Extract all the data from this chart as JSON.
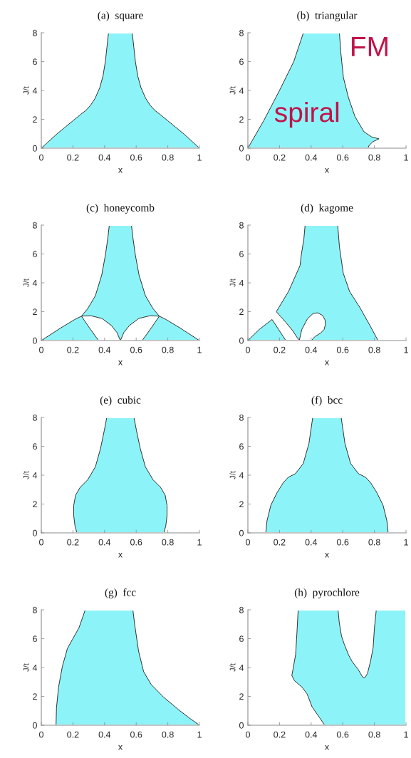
{
  "chart_data": [
    {
      "type": "area",
      "title": "(a)  square",
      "xlabel": "x",
      "ylabel": "J/t",
      "xlim": [
        0,
        1
      ],
      "ylim": [
        0,
        8
      ],
      "xticks": [
        0,
        0.2,
        0.4,
        0.6,
        0.8,
        1
      ],
      "yticks": [
        0,
        2,
        4,
        6,
        8
      ],
      "series": [
        {
          "color": "#8cf4f8",
          "x": [
            0,
            0.05,
            0.1,
            0.15,
            0.2,
            0.25,
            0.28,
            0.31,
            0.34,
            0.37,
            0.39,
            0.405,
            0.415,
            0.425,
            0.575,
            0.585,
            0.595,
            0.61,
            0.63,
            0.66,
            0.69,
            0.72,
            0.75,
            0.8,
            0.85,
            0.9,
            0.95,
            1
          ],
          "values": [
            0,
            0.5,
            1.0,
            1.45,
            1.9,
            2.35,
            2.6,
            2.95,
            3.45,
            4.2,
            5.0,
            6.0,
            7.0,
            8,
            8,
            7.0,
            6.0,
            5.0,
            4.2,
            3.45,
            2.95,
            2.6,
            2.35,
            1.9,
            1.45,
            1.0,
            0.5,
            0
          ]
        }
      ]
    },
    {
      "type": "area",
      "title": "(b)  triangular",
      "xlabel": "x",
      "ylabel": "J/t",
      "xlim": [
        0,
        1
      ],
      "ylim": [
        0,
        8
      ],
      "xticks": [
        0,
        0.2,
        0.4,
        0.6,
        0.8,
        1
      ],
      "yticks": [
        0,
        2,
        4,
        6,
        8
      ],
      "annotations": [
        "spiral",
        "FM"
      ],
      "series": [
        {
          "color": "#8cf4f8",
          "x": [
            0,
            0.1,
            0.2,
            0.29,
            0.351,
            0.579,
            0.587,
            0.604,
            0.636,
            0.677,
            0.734,
            0.783,
            0.829,
            0.791,
            0.767,
            0.759
          ],
          "values": [
            0,
            1.9,
            4.0,
            6.0,
            8,
            8,
            6.7,
            4.9,
            3.5,
            2.2,
            1.14,
            0.78,
            0.65,
            0.45,
            0.2,
            0
          ]
        }
      ]
    },
    {
      "type": "area",
      "title": "(c)  honeycomb",
      "xlabel": "x",
      "ylabel": "J/t",
      "xlim": [
        0,
        1
      ],
      "ylim": [
        0,
        8
      ],
      "xticks": [
        0,
        0.2,
        0.4,
        0.6,
        0.8,
        1
      ],
      "yticks": [
        0,
        2,
        4,
        6,
        8
      ],
      "series": [
        {
          "color": "#8cf4f8",
          "x": [
            0,
            0.124,
            0.21,
            0.254,
            0.294,
            0.342,
            0.382,
            0.406,
            0.422,
            0.43,
            0.57,
            0.578,
            0.594,
            0.618,
            0.658,
            0.706,
            0.746,
            0.79,
            0.876,
            1,
            0.638,
            0.696,
            0.746,
            0.688,
            0.616,
            0.558,
            0.522,
            0.5,
            0.478,
            0.442,
            0.384,
            0.312,
            0.254,
            0.304,
            0.362
          ],
          "values": [
            0,
            0.88,
            1.45,
            1.69,
            2.22,
            3.11,
            4.54,
            5.97,
            7.23,
            8,
            8,
            7.23,
            5.97,
            4.54,
            3.11,
            2.22,
            1.69,
            1.45,
            0.88,
            0,
            0,
            0.88,
            1.69,
            1.72,
            1.53,
            1.05,
            0.56,
            0,
            0.56,
            1.05,
            1.53,
            1.72,
            1.69,
            0.88,
            0
          ]
        }
      ]
    },
    {
      "type": "area",
      "title": "(d)  kagome",
      "xlabel": "x",
      "ylabel": "J/t",
      "xlim": [
        0,
        1
      ],
      "ylim": [
        0,
        8
      ],
      "xticks": [
        0,
        0.2,
        0.4,
        0.6,
        0.8,
        1
      ],
      "yticks": [
        0,
        2,
        4,
        6,
        8
      ],
      "series": [
        {
          "color": "#8cf4f8",
          "x": [
            0,
            0.07,
            0.153,
            0.195,
            0.24,
            0.325,
            0.341,
            0.377,
            0.413,
            0.442,
            0.471,
            0.488,
            0.49,
            0.482,
            0.46,
            0.425,
            0.41,
            0.405,
            0.823,
            0.772,
            0.707,
            0.643,
            0.603,
            0.579,
            0.568,
            0.362,
            0.354,
            0.338,
            0.33,
            0.257,
            0.18,
            0.24,
            0.283,
            0.312,
            0.325
          ],
          "values": [
            0,
            0.75,
            1.46,
            0.75,
            0,
            0,
            0.77,
            1.51,
            1.88,
            1.92,
            1.75,
            1.43,
            1.1,
            0.77,
            0.52,
            0.28,
            0.12,
            0,
            0,
            1.04,
            2.31,
            3.4,
            4.67,
            6.49,
            8,
            8,
            7.04,
            5.95,
            5.2,
            3.4,
            2.0,
            1.26,
            0.69,
            0.2,
            0
          ]
        }
      ]
    },
    {
      "type": "area",
      "title": "(e)  cubic",
      "xlabel": "x",
      "ylabel": "J/t",
      "xlim": [
        0,
        1
      ],
      "ylim": [
        0,
        8
      ],
      "xticks": [
        0,
        0.2,
        0.4,
        0.6,
        0.8,
        1
      ],
      "yticks": [
        0,
        2,
        4,
        6,
        8
      ],
      "series": [
        {
          "color": "#8cf4f8",
          "x": [
            0.225,
            0.213,
            0.205,
            0.205,
            0.217,
            0.246,
            0.294,
            0.342,
            0.374,
            0.398,
            0.414,
            0.586,
            0.602,
            0.626,
            0.658,
            0.706,
            0.754,
            0.783,
            0.795,
            0.795,
            0.787,
            0.775
          ],
          "values": [
            0,
            0.48,
            1.19,
            1.91,
            2.62,
            3.16,
            3.69,
            4.58,
            5.83,
            7.08,
            8,
            8,
            7.08,
            5.83,
            4.58,
            3.69,
            3.16,
            2.62,
            1.91,
            1.19,
            0.48,
            0
          ]
        }
      ]
    },
    {
      "type": "area",
      "title": "(f)  bcc",
      "xlabel": "x",
      "ylabel": "J/t",
      "xlim": [
        0,
        1
      ],
      "ylim": [
        0,
        8
      ],
      "xticks": [
        0,
        0.2,
        0.4,
        0.6,
        0.8,
        1
      ],
      "yticks": [
        0,
        2,
        4,
        6,
        8
      ],
      "series": [
        {
          "color": "#8cf4f8",
          "x": [
            0.113,
            0.121,
            0.145,
            0.185,
            0.225,
            0.255,
            0.3,
            0.35,
            0.386,
            0.41,
            0.59,
            0.614,
            0.65,
            0.7,
            0.745,
            0.775,
            0.815,
            0.855,
            0.879,
            0.887
          ],
          "values": [
            0,
            0.84,
            1.91,
            2.8,
            3.5,
            3.85,
            4.1,
            4.8,
            6.19,
            8,
            8,
            6.19,
            4.8,
            4.1,
            3.85,
            3.5,
            2.8,
            1.91,
            0.84,
            0
          ]
        }
      ]
    },
    {
      "type": "area",
      "title": "(g)  fcc",
      "xlabel": "x",
      "ylabel": "J/t",
      "xlim": [
        0,
        1
      ],
      "ylim": [
        0,
        8
      ],
      "xticks": [
        0,
        0.2,
        0.4,
        0.6,
        0.8,
        1
      ],
      "yticks": [
        0,
        2,
        4,
        6,
        8
      ],
      "series": [
        {
          "color": "#8cf4f8",
          "x": [
            0.093,
            0.096,
            0.109,
            0.133,
            0.165,
            0.197,
            0.238,
            0.278,
            0.579,
            0.591,
            0.615,
            0.647,
            0.695,
            0.775,
            0.872,
            0.936,
            1
          ],
          "values": [
            0,
            1.21,
            2.64,
            4.07,
            5.32,
            5.95,
            6.75,
            8,
            8,
            6.93,
            5.14,
            3.71,
            2.82,
            1.93,
            1.04,
            0.5,
            0
          ]
        }
      ]
    },
    {
      "type": "area",
      "title": "(h)  pyrochlore",
      "xlabel": "x",
      "ylabel": "J/t",
      "xlim": [
        0,
        1
      ],
      "ylim": [
        0,
        8
      ],
      "xticks": [
        0,
        0.2,
        0.4,
        0.6,
        0.8,
        1
      ],
      "yticks": [
        0,
        2,
        4,
        6,
        8
      ],
      "series": [
        {
          "color": "#8cf4f8",
          "x": [
            0.486,
            1,
            1,
            0.812,
            0.8,
            0.792,
            0.775,
            0.756,
            0.738,
            0.725,
            0.696,
            0.66,
            0.637,
            0.61,
            0.592,
            0.578,
            0.57,
            0.318,
            0.31,
            0.302,
            0.286,
            0.278,
            0.294,
            0.342,
            0.374,
            0.387,
            0.406,
            0.446,
            0.486
          ],
          "values": [
            0,
            0,
            8,
            8,
            6.7,
            5.36,
            4.4,
            3.58,
            3.27,
            3.35,
            3.89,
            4.4,
            4.87,
            5.6,
            6.18,
            7.1,
            8,
            8,
            6.36,
            4.91,
            3.91,
            3.45,
            3.09,
            2.64,
            2.18,
            1.82,
            1.27,
            0.64,
            0
          ]
        }
      ]
    }
  ]
}
